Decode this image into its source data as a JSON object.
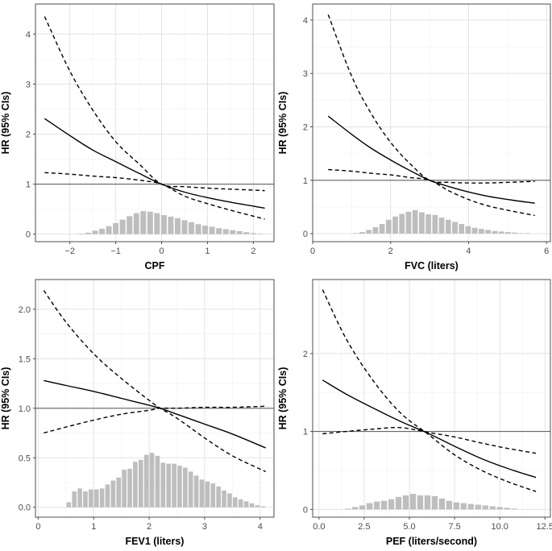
{
  "colors": {
    "grid_major": "#e3e3e3",
    "grid_minor": "#f2f2f2",
    "axis_frame": "#4d4d4d",
    "curve": "#000000",
    "reference_line": "#666666",
    "histogram_bar": "#bebebe"
  },
  "chart_data": [
    {
      "type": "line",
      "panel": "top-left",
      "xlabel": "CPF",
      "ylabel": "HR (95% CIs)",
      "xlim": [
        -2.75,
        2.45
      ],
      "ylim": [
        -0.15,
        4.6
      ],
      "xticks": [
        -2,
        -1,
        0,
        1,
        2
      ],
      "xtick_labels": [
        "−2",
        "−1",
        "0",
        "1",
        "2"
      ],
      "yticks": [
        0,
        1,
        2,
        3,
        4
      ],
      "ytick_labels": [
        "0",
        "1",
        "2",
        "3",
        "4"
      ],
      "reference_hr": 1,
      "x": [
        -2.55,
        -2.0,
        -1.5,
        -1.0,
        -0.5,
        0.0,
        0.5,
        1.0,
        1.5,
        2.0,
        2.25
      ],
      "series": [
        {
          "name": "HR",
          "style": "solid",
          "values": [
            2.31,
            1.97,
            1.68,
            1.45,
            1.22,
            1.0,
            0.84,
            0.73,
            0.64,
            0.56,
            0.52
          ]
        },
        {
          "name": "Upper 95% CI",
          "style": "dashed",
          "values": [
            4.35,
            3.26,
            2.48,
            1.85,
            1.41,
            1.0,
            0.95,
            0.92,
            0.9,
            0.88,
            0.87
          ]
        },
        {
          "name": "Lower 95% CI",
          "style": "dashed",
          "values": [
            1.23,
            1.2,
            1.16,
            1.13,
            1.08,
            1.0,
            0.76,
            0.61,
            0.48,
            0.36,
            0.3
          ]
        }
      ],
      "histogram": {
        "bins_x": [
          -1.75,
          -1.6,
          -1.45,
          -1.3,
          -1.15,
          -1.0,
          -0.85,
          -0.7,
          -0.55,
          -0.4,
          -0.25,
          -0.1,
          0.05,
          0.2,
          0.35,
          0.5,
          0.65,
          0.8,
          0.95,
          1.1,
          1.25,
          1.4,
          1.55,
          1.7,
          1.85,
          2.0,
          2.15
        ],
        "heights": [
          0.01,
          0.03,
          0.07,
          0.11,
          0.16,
          0.22,
          0.29,
          0.36,
          0.42,
          0.46,
          0.45,
          0.42,
          0.38,
          0.35,
          0.32,
          0.28,
          0.24,
          0.2,
          0.17,
          0.15,
          0.12,
          0.1,
          0.08,
          0.06,
          0.04,
          0.02,
          0.01
        ]
      }
    },
    {
      "type": "line",
      "panel": "top-right",
      "xlabel": "FVC (liters)",
      "ylabel": "HR (95% CIs)",
      "xlim": [
        0,
        6.1
      ],
      "ylim": [
        -0.15,
        4.3
      ],
      "xticks": [
        0,
        2,
        4,
        6
      ],
      "xtick_labels": [
        "0",
        "2",
        "4",
        "6"
      ],
      "yticks": [
        0,
        1,
        2,
        3,
        4
      ],
      "ytick_labels": [
        "0",
        "1",
        "2",
        "3",
        "4"
      ],
      "reference_hr": 1,
      "x": [
        0.4,
        1.0,
        1.5,
        2.0,
        2.5,
        3.0,
        3.5,
        4.0,
        4.5,
        5.0,
        5.7
      ],
      "series": [
        {
          "name": "HR",
          "style": "solid",
          "values": [
            2.2,
            1.86,
            1.6,
            1.38,
            1.18,
            1.0,
            0.88,
            0.78,
            0.7,
            0.64,
            0.57
          ]
        },
        {
          "name": "Upper 95% CI",
          "style": "dashed",
          "values": [
            4.1,
            2.95,
            2.25,
            1.71,
            1.31,
            1.0,
            0.96,
            0.95,
            0.95,
            0.96,
            0.98
          ]
        },
        {
          "name": "Lower 95% CI",
          "style": "dashed",
          "values": [
            1.2,
            1.17,
            1.13,
            1.1,
            1.05,
            1.0,
            0.8,
            0.64,
            0.52,
            0.44,
            0.34
          ]
        }
      ],
      "histogram": {
        "bins_x": [
          1.1,
          1.27,
          1.44,
          1.61,
          1.78,
          1.95,
          2.12,
          2.29,
          2.46,
          2.63,
          2.8,
          2.97,
          3.14,
          3.31,
          3.48,
          3.65,
          3.82,
          3.99,
          4.16,
          4.33,
          4.5,
          4.67,
          4.84,
          5.01,
          5.18,
          5.35,
          5.52
        ],
        "heights": [
          0.01,
          0.03,
          0.07,
          0.12,
          0.18,
          0.26,
          0.32,
          0.37,
          0.41,
          0.44,
          0.4,
          0.36,
          0.35,
          0.3,
          0.26,
          0.22,
          0.18,
          0.14,
          0.11,
          0.09,
          0.07,
          0.05,
          0.04,
          0.03,
          0.02,
          0.01,
          0.01
        ]
      }
    },
    {
      "type": "line",
      "panel": "bottom-left",
      "xlabel": "FEV1 (liters)",
      "ylabel": "HR (95% CIs)",
      "xlim": [
        -0.05,
        4.25
      ],
      "ylim": [
        -0.1,
        2.3
      ],
      "xticks": [
        0,
        1,
        2,
        3,
        4
      ],
      "xtick_labels": [
        "0",
        "1",
        "2",
        "3",
        "4"
      ],
      "yticks": [
        0.0,
        0.5,
        1.0,
        1.5,
        2.0
      ],
      "ytick_labels": [
        "0.0",
        "0.5",
        "1.0",
        "1.5",
        "2.0"
      ],
      "reference_hr": 1,
      "x": [
        0.1,
        0.5,
        1.0,
        1.5,
        2.0,
        2.2,
        2.5,
        3.0,
        3.5,
        4.1
      ],
      "series": [
        {
          "name": "HR",
          "style": "solid",
          "values": [
            1.28,
            1.23,
            1.17,
            1.1,
            1.03,
            1.0,
            0.94,
            0.84,
            0.74,
            0.6
          ]
        },
        {
          "name": "Upper 95% CI",
          "style": "dashed",
          "values": [
            2.19,
            1.87,
            1.55,
            1.3,
            1.08,
            1.0,
            0.9,
            0.7,
            0.52,
            0.36
          ]
        },
        {
          "name": "Lower 95% CI",
          "style": "dashed",
          "values": [
            0.75,
            0.81,
            0.88,
            0.94,
            0.98,
            1.0,
            1.0,
            1.01,
            1.01,
            1.02
          ]
        }
      ],
      "histogram": {
        "bins_x": [
          0.55,
          0.65,
          0.75,
          0.85,
          0.95,
          1.05,
          1.15,
          1.25,
          1.35,
          1.45,
          1.55,
          1.65,
          1.75,
          1.85,
          1.95,
          2.05,
          2.15,
          2.25,
          2.35,
          2.45,
          2.55,
          2.65,
          2.75,
          2.85,
          2.95,
          3.05,
          3.15,
          3.25,
          3.35,
          3.45,
          3.55,
          3.65,
          3.75,
          3.85,
          3.95,
          4.05
        ],
        "heights": [
          0.05,
          0.16,
          0.19,
          0.16,
          0.18,
          0.18,
          0.19,
          0.23,
          0.27,
          0.3,
          0.38,
          0.39,
          0.46,
          0.48,
          0.53,
          0.55,
          0.52,
          0.45,
          0.44,
          0.44,
          0.42,
          0.4,
          0.36,
          0.32,
          0.28,
          0.26,
          0.24,
          0.21,
          0.17,
          0.14,
          0.1,
          0.08,
          0.06,
          0.04,
          0.02,
          0.01
        ]
      }
    },
    {
      "type": "line",
      "panel": "bottom-right",
      "xlabel": "PEF (liters/second)",
      "ylabel": "HR (95% CIs)",
      "xlim": [
        -0.35,
        12.8
      ],
      "ylim": [
        -0.1,
        2.95
      ],
      "xticks": [
        0.0,
        2.5,
        5.0,
        7.5,
        10.0,
        12.5
      ],
      "xtick_labels": [
        "0.0",
        "2.5",
        "5.0",
        "7.5",
        "10.0",
        "12.5"
      ],
      "yticks": [
        0,
        1,
        2
      ],
      "ytick_labels": [
        "0",
        "1",
        "2"
      ],
      "reference_hr": 1,
      "x": [
        0.2,
        1.5,
        3.0,
        4.5,
        6.0,
        7.5,
        9.0,
        10.5,
        12.0
      ],
      "series": [
        {
          "name": "HR",
          "style": "solid",
          "values": [
            1.66,
            1.48,
            1.3,
            1.13,
            0.98,
            0.81,
            0.65,
            0.52,
            0.41
          ]
        },
        {
          "name": "Upper 95% CI",
          "style": "dashed",
          "values": [
            2.82,
            2.19,
            1.65,
            1.24,
            0.97,
            0.7,
            0.5,
            0.35,
            0.23
          ]
        },
        {
          "name": "Lower 95% CI",
          "style": "dashed",
          "values": [
            0.97,
            1.0,
            1.03,
            1.05,
            0.99,
            0.93,
            0.85,
            0.78,
            0.72
          ]
        }
      ],
      "histogram": {
        "bins_x": [
          1.6,
          2.0,
          2.4,
          2.8,
          3.2,
          3.6,
          4.0,
          4.4,
          4.8,
          5.2,
          5.6,
          6.0,
          6.4,
          6.8,
          7.2,
          7.6,
          8.0,
          8.4,
          8.8,
          9.2,
          9.6,
          10.0,
          10.4,
          10.8
        ],
        "heights": [
          0.01,
          0.03,
          0.05,
          0.08,
          0.1,
          0.11,
          0.13,
          0.16,
          0.18,
          0.2,
          0.18,
          0.18,
          0.17,
          0.14,
          0.11,
          0.09,
          0.08,
          0.07,
          0.06,
          0.05,
          0.04,
          0.03,
          0.02,
          0.01
        ]
      }
    }
  ]
}
